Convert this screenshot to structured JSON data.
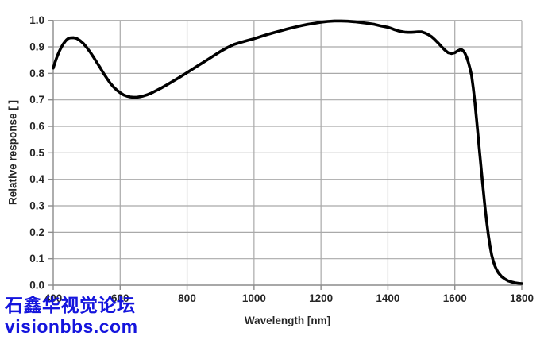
{
  "watermark": {
    "line1": "石鑫华视觉论坛",
    "line2": "visionbbs.com",
    "color": "#1515dd"
  },
  "chart_data": {
    "type": "line",
    "title": "",
    "xlabel": "Wavelength [nm]",
    "ylabel": "Relative response [ ]",
    "xlim": [
      400,
      1800
    ],
    "ylim": [
      0.0,
      1.0
    ],
    "grid": true,
    "legend": "none",
    "x_ticks": [
      400,
      600,
      800,
      1000,
      1200,
      1400,
      1600,
      1800
    ],
    "y_tick_labels": [
      "0.0",
      "0.1",
      "0.2",
      "0.3",
      "0.4",
      "0.5",
      "0.6",
      "0.7",
      "0.8",
      "0.9",
      "1.0"
    ],
    "style": {
      "curve_color": "#000000",
      "curve_width": 3.6,
      "grid_color": "#a9a9a9",
      "axis_color": "#8c8c8c",
      "tick_text_color": "#262626",
      "background": "#ffffff"
    },
    "series": [
      {
        "name": "relative-response",
        "points": [
          [
            400,
            0.82
          ],
          [
            405,
            0.84
          ],
          [
            410,
            0.858
          ],
          [
            415,
            0.874
          ],
          [
            420,
            0.888
          ],
          [
            425,
            0.9
          ],
          [
            430,
            0.911
          ],
          [
            435,
            0.92
          ],
          [
            440,
            0.927
          ],
          [
            445,
            0.932
          ],
          [
            450,
            0.934
          ],
          [
            460,
            0.935
          ],
          [
            470,
            0.932
          ],
          [
            480,
            0.924
          ],
          [
            490,
            0.913
          ],
          [
            500,
            0.898
          ],
          [
            510,
            0.881
          ],
          [
            520,
            0.862
          ],
          [
            530,
            0.842
          ],
          [
            540,
            0.822
          ],
          [
            550,
            0.801
          ],
          [
            560,
            0.782
          ],
          [
            570,
            0.764
          ],
          [
            580,
            0.749
          ],
          [
            590,
            0.737
          ],
          [
            600,
            0.727
          ],
          [
            610,
            0.719
          ],
          [
            620,
            0.714
          ],
          [
            630,
            0.711
          ],
          [
            640,
            0.71
          ],
          [
            650,
            0.71
          ],
          [
            660,
            0.712
          ],
          [
            670,
            0.715
          ],
          [
            680,
            0.719
          ],
          [
            690,
            0.724
          ],
          [
            700,
            0.73
          ],
          [
            720,
            0.743
          ],
          [
            740,
            0.757
          ],
          [
            760,
            0.772
          ],
          [
            780,
            0.787
          ],
          [
            800,
            0.803
          ],
          [
            820,
            0.819
          ],
          [
            840,
            0.835
          ],
          [
            860,
            0.851
          ],
          [
            880,
            0.867
          ],
          [
            900,
            0.883
          ],
          [
            920,
            0.897
          ],
          [
            940,
            0.909
          ],
          [
            960,
            0.917
          ],
          [
            980,
            0.924
          ],
          [
            1000,
            0.931
          ],
          [
            1020,
            0.939
          ],
          [
            1040,
            0.947
          ],
          [
            1060,
            0.954
          ],
          [
            1080,
            0.961
          ],
          [
            1100,
            0.968
          ],
          [
            1120,
            0.974
          ],
          [
            1140,
            0.98
          ],
          [
            1160,
            0.985
          ],
          [
            1180,
            0.989
          ],
          [
            1200,
            0.993
          ],
          [
            1220,
            0.996
          ],
          [
            1240,
            0.998
          ],
          [
            1260,
            0.998
          ],
          [
            1280,
            0.997
          ],
          [
            1300,
            0.995
          ],
          [
            1320,
            0.992
          ],
          [
            1340,
            0.989
          ],
          [
            1360,
            0.985
          ],
          [
            1380,
            0.979
          ],
          [
            1400,
            0.974
          ],
          [
            1410,
            0.97
          ],
          [
            1420,
            0.965
          ],
          [
            1430,
            0.961
          ],
          [
            1440,
            0.958
          ],
          [
            1450,
            0.956
          ],
          [
            1460,
            0.955
          ],
          [
            1470,
            0.955
          ],
          [
            1480,
            0.956
          ],
          [
            1490,
            0.957
          ],
          [
            1500,
            0.957
          ],
          [
            1510,
            0.953
          ],
          [
            1520,
            0.947
          ],
          [
            1530,
            0.939
          ],
          [
            1540,
            0.928
          ],
          [
            1550,
            0.915
          ],
          [
            1560,
            0.901
          ],
          [
            1570,
            0.888
          ],
          [
            1580,
            0.878
          ],
          [
            1590,
            0.875
          ],
          [
            1600,
            0.878
          ],
          [
            1610,
            0.886
          ],
          [
            1615,
            0.889
          ],
          [
            1620,
            0.89
          ],
          [
            1625,
            0.885
          ],
          [
            1630,
            0.876
          ],
          [
            1635,
            0.862
          ],
          [
            1640,
            0.843
          ],
          [
            1645,
            0.82
          ],
          [
            1650,
            0.792
          ],
          [
            1655,
            0.745
          ],
          [
            1660,
            0.69
          ],
          [
            1665,
            0.625
          ],
          [
            1670,
            0.557
          ],
          [
            1675,
            0.49
          ],
          [
            1680,
            0.424
          ],
          [
            1685,
            0.36
          ],
          [
            1690,
            0.297
          ],
          [
            1695,
            0.24
          ],
          [
            1700,
            0.19
          ],
          [
            1705,
            0.148
          ],
          [
            1710,
            0.114
          ],
          [
            1715,
            0.09
          ],
          [
            1720,
            0.072
          ],
          [
            1725,
            0.058
          ],
          [
            1730,
            0.047
          ],
          [
            1740,
            0.032
          ],
          [
            1750,
            0.023
          ],
          [
            1760,
            0.016
          ],
          [
            1770,
            0.012
          ],
          [
            1780,
            0.009
          ],
          [
            1790,
            0.007
          ],
          [
            1800,
            0.006
          ]
        ]
      }
    ]
  }
}
